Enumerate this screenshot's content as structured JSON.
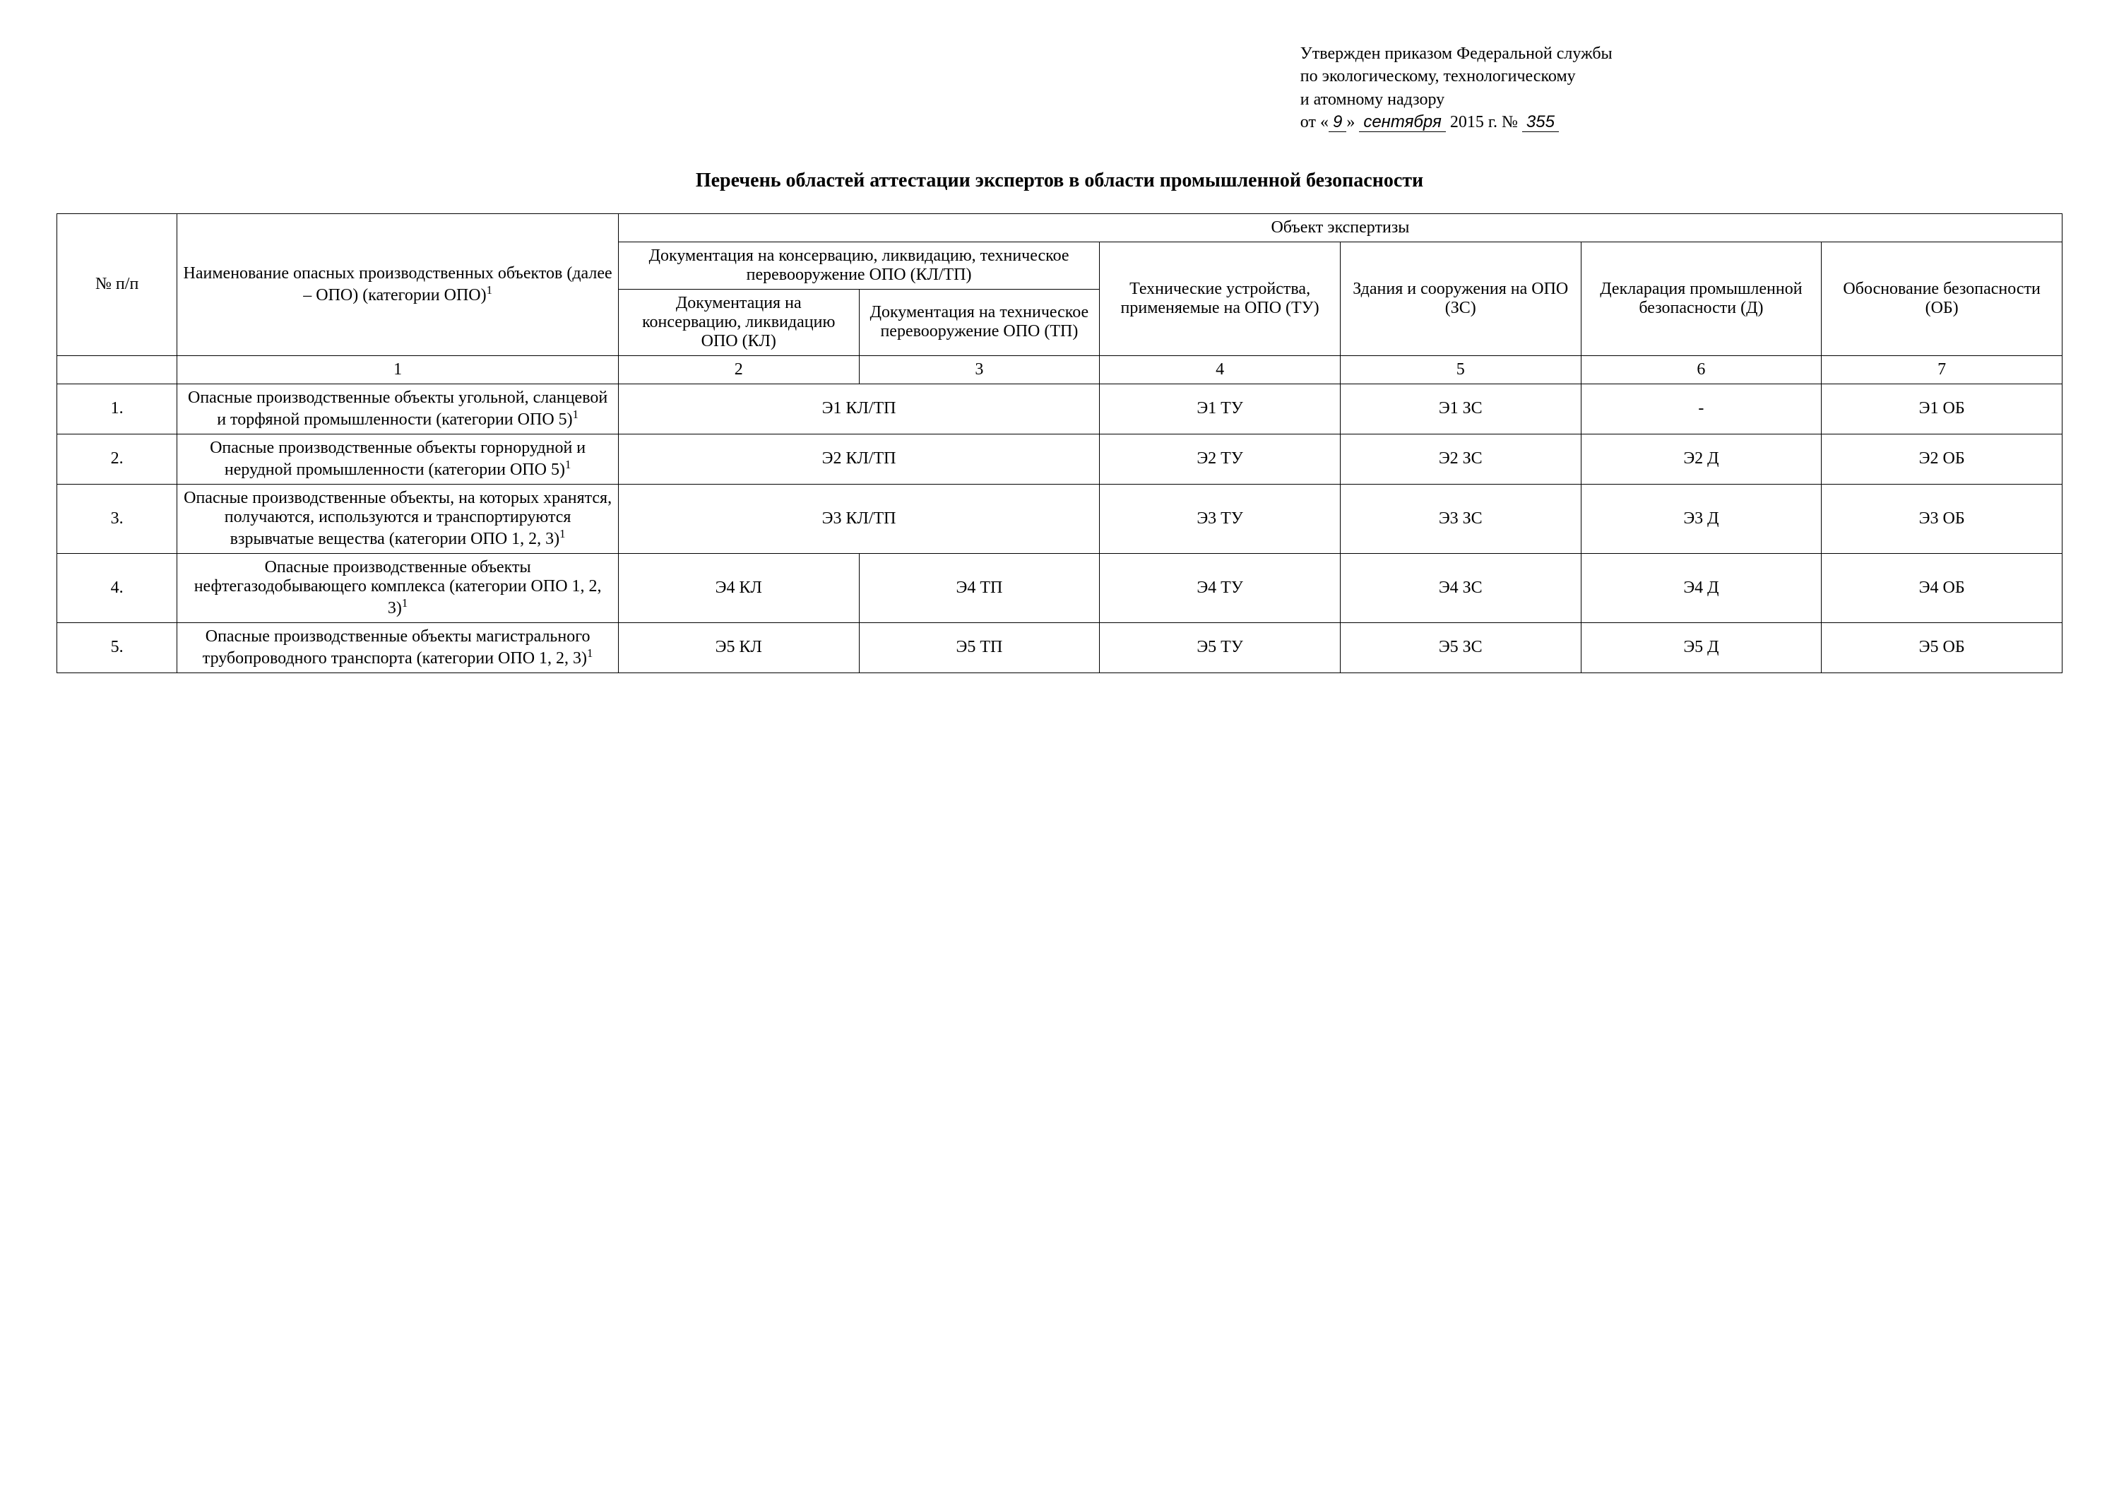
{
  "approval": {
    "line1": "Утвержден приказом Федеральной службы",
    "line2": "по экологическому, технологическому",
    "line3": "и атомному надзору",
    "from_prefix": "от «",
    "day": "9",
    "mid": "»",
    "month": "сентября",
    "year_suffix": "2015 г.  №",
    "order_no": "355"
  },
  "title": "Перечень областей аттестации экспертов в области промышленной безопасности",
  "headers": {
    "num": "№ п/п",
    "name": "Наименование опасных производственных объектов (далее – ОПО) (категории ОПО)",
    "name_sup": "1",
    "obj": "Объект экспертизы",
    "doc_group": "Документация на консервацию, ликвидацию, техническое перевооружение ОПО (КЛ/ТП)",
    "doc_kl": "Документация на консервацию, ликвидацию ОПО (КЛ)",
    "doc_tp": "Документация на техническое перевооружение ОПО (ТП)",
    "tu": "Технические устройства, применяемые на ОПО (ТУ)",
    "zs": "Здания и сооружения на ОПО (ЗС)",
    "d": "Декларация промышленной безопасности (Д)",
    "ob": "Обоснование безопасности (ОБ)"
  },
  "col_index": [
    "1",
    "2",
    "3",
    "4",
    "5",
    "6",
    "7"
  ],
  "rows": [
    {
      "n": "1.",
      "name": "Опасные производственные объекты угольной, сланцевой и торфяной промышленности (категории ОПО 5)",
      "sup": "1",
      "kl_merged": true,
      "kltp": "Э1 КЛ/ТП",
      "tu": "Э1 ТУ",
      "zs": "Э1 ЗС",
      "d": "-",
      "ob": "Э1 ОБ"
    },
    {
      "n": "2.",
      "name": "Опасные производственные объекты горнорудной и нерудной промышленности (категории ОПО 5)",
      "sup": "1",
      "kl_merged": true,
      "kltp": "Э2 КЛ/ТП",
      "tu": "Э2 ТУ",
      "zs": "Э2 ЗС",
      "d": "Э2 Д",
      "ob": "Э2 ОБ"
    },
    {
      "n": "3.",
      "name": "Опасные производственные объекты, на которых хранятся, получаются, используются и транспортируются взрывчатые вещества (категории ОПО 1, 2, 3)",
      "sup": "1",
      "kl_merged": true,
      "kltp": "Э3 КЛ/ТП",
      "tu": "Э3 ТУ",
      "zs": "Э3 ЗС",
      "d": "Э3 Д",
      "ob": "Э3 ОБ"
    },
    {
      "n": "4.",
      "name": "Опасные производственные объекты нефтегазодобывающего комплекса (категории ОПО 1, 2, 3)",
      "sup": "1",
      "kl_merged": false,
      "kl": "Э4 КЛ",
      "tp": "Э4 ТП",
      "tu": "Э4 ТУ",
      "zs": "Э4 ЗС",
      "d": "Э4 Д",
      "ob": "Э4 ОБ"
    },
    {
      "n": "5.",
      "name": "Опасные производственные объекты магистрального трубопроводного транспорта (категории ОПО 1, 2, 3)",
      "sup": "1",
      "kl_merged": false,
      "kl": "Э5 КЛ",
      "tp": "Э5 ТП",
      "tu": "Э5 ТУ",
      "zs": "Э5 ЗС",
      "d": "Э5 Д",
      "ob": "Э5 ОБ"
    }
  ]
}
